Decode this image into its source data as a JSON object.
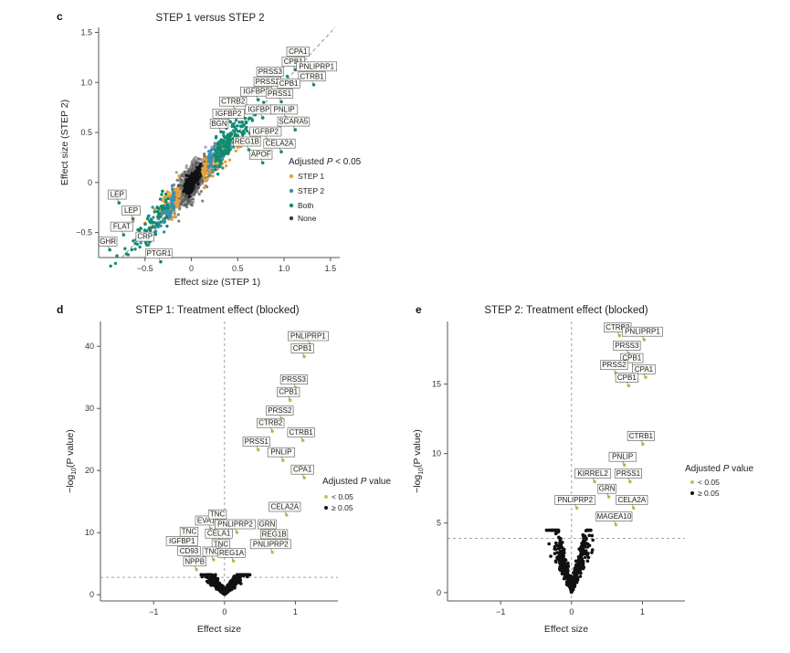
{
  "figure": {
    "colors": {
      "step1": "#e8a13a",
      "step2": "#3a8fb5",
      "both": "#0f8c6e",
      "none": "#3a3a3a",
      "sig": "#c8c44a",
      "nonsig": "#111111",
      "axis": "#555555",
      "dashed": "#888888"
    }
  },
  "chart_data": [
    {
      "panel": "c",
      "type": "scatter",
      "title": "STEP 1 versus STEP 2",
      "xlabel": "Effect size (STEP 1)",
      "ylabel": "Effect size (STEP 2)",
      "xlim": [
        -1.0,
        1.6
      ],
      "ylim": [
        -0.75,
        1.55
      ],
      "xticks": [
        -0.5,
        0,
        0.5,
        1.0,
        1.5
      ],
      "xticklabels": [
        "−0.5",
        "0",
        "0.5",
        "1.0",
        "1.5"
      ],
      "yticks": [
        -0.5,
        0,
        0.5,
        1.0,
        1.5
      ],
      "yticklabels": [
        "−0.5",
        "0",
        "0.5",
        "1.0",
        "1.5"
      ],
      "legend": {
        "title_prefix": "Adjusted ",
        "title_p": "P",
        "title_suffix": " < 0.05",
        "placement": "right",
        "items": [
          "STEP 1",
          "STEP 2",
          "Both",
          "None"
        ]
      },
      "diagonal": "y = x",
      "labels": [
        {
          "name": "CPA1",
          "x": 1.15,
          "y": 1.3
        },
        {
          "name": "CPB1",
          "x": 1.1,
          "y": 1.2
        },
        {
          "name": "PNLIPRP1",
          "x": 1.35,
          "y": 1.15
        },
        {
          "name": "PRSS3",
          "x": 0.85,
          "y": 1.1
        },
        {
          "name": "CTRB1",
          "x": 1.3,
          "y": 1.05
        },
        {
          "name": "PRSS2",
          "x": 0.82,
          "y": 1.0
        },
        {
          "name": "CPB1",
          "x": 1.05,
          "y": 0.98
        },
        {
          "name": "IGFBP3",
          "x": 0.7,
          "y": 0.9
        },
        {
          "name": "PRSS1",
          "x": 0.95,
          "y": 0.88
        },
        {
          "name": "CTRB2",
          "x": 0.45,
          "y": 0.8
        },
        {
          "name": "IGFBP2",
          "x": 0.75,
          "y": 0.72
        },
        {
          "name": "PNLIP",
          "x": 1.0,
          "y": 0.72
        },
        {
          "name": "IGFBP2",
          "x": 0.4,
          "y": 0.68
        },
        {
          "name": "SCARA5",
          "x": 1.1,
          "y": 0.6
        },
        {
          "name": "BGN",
          "x": 0.3,
          "y": 0.58
        },
        {
          "name": "IGFBP2",
          "x": 0.8,
          "y": 0.5
        },
        {
          "name": "REG1B",
          "x": 0.6,
          "y": 0.4
        },
        {
          "name": "CELA2A",
          "x": 0.95,
          "y": 0.38
        },
        {
          "name": "APOF",
          "x": 0.75,
          "y": 0.27
        },
        {
          "name": "LEP",
          "x": -0.8,
          "y": -0.13
        },
        {
          "name": "LEP",
          "x": -0.65,
          "y": -0.29
        },
        {
          "name": "FLAT",
          "x": -0.75,
          "y": -0.45
        },
        {
          "name": "CRP",
          "x": -0.5,
          "y": -0.55
        },
        {
          "name": "GHR",
          "x": -0.9,
          "y": -0.6
        },
        {
          "name": "PTGR1",
          "x": -0.35,
          "y": -0.72
        }
      ]
    },
    {
      "panel": "d",
      "type": "scatter",
      "title": "STEP 1: Treatment effect (blocked)",
      "xlabel": "Effect size",
      "ylabel": "−log",
      "ylabel_sub": "10",
      "ylabel_tail": "(P value)",
      "xlim": [
        -1.75,
        1.6
      ],
      "ylim": [
        -1,
        44
      ],
      "xticks": [
        -1,
        0,
        1
      ],
      "xticklabels": [
        "−1",
        "0",
        "1"
      ],
      "yticks": [
        0,
        10,
        20,
        30,
        40
      ],
      "yticklabels": [
        "0",
        "10",
        "20",
        "30",
        "40"
      ],
      "threshold": 2.8,
      "legend": {
        "title_prefix": "Adjusted ",
        "title_p": "P",
        "title_suffix": " value",
        "placement": "right",
        "items": [
          "< 0.05",
          "≥ 0.05"
        ]
      },
      "labels": [
        {
          "name": "PNLIPRP1",
          "x": 1.18,
          "y": 41.5
        },
        {
          "name": "CPB1",
          "x": 1.1,
          "y": 39.5
        },
        {
          "name": "PRSS3",
          "x": 0.98,
          "y": 34.5
        },
        {
          "name": "CPB1",
          "x": 0.9,
          "y": 32.5
        },
        {
          "name": "PRSS2",
          "x": 0.78,
          "y": 29.5
        },
        {
          "name": "CTRB2",
          "x": 0.65,
          "y": 27.5
        },
        {
          "name": "CTRB1",
          "x": 1.08,
          "y": 26.0
        },
        {
          "name": "PRSS1",
          "x": 0.45,
          "y": 24.5
        },
        {
          "name": "PNLIP",
          "x": 0.8,
          "y": 22.8
        },
        {
          "name": "CPA1",
          "x": 1.1,
          "y": 20.0
        },
        {
          "name": "CELA2A",
          "x": 0.85,
          "y": 14.0
        },
        {
          "name": "EVA1C",
          "x": -0.22,
          "y": 11.8
        },
        {
          "name": "TNC",
          "x": -0.1,
          "y": 12.8
        },
        {
          "name": "PNLIPRP2",
          "x": 0.15,
          "y": 11.2
        },
        {
          "name": "GRN",
          "x": 0.6,
          "y": 11.2
        },
        {
          "name": "TNC",
          "x": -0.5,
          "y": 10.0
        },
        {
          "name": "CELA1",
          "x": -0.08,
          "y": 9.7
        },
        {
          "name": "REG1B",
          "x": 0.7,
          "y": 9.6
        },
        {
          "name": "IGFBP1",
          "x": -0.6,
          "y": 8.5
        },
        {
          "name": "TNC",
          "x": -0.05,
          "y": 8.0
        },
        {
          "name": "PNLIPRP2",
          "x": 0.65,
          "y": 8.0
        },
        {
          "name": "CD93",
          "x": -0.5,
          "y": 6.9
        },
        {
          "name": "TNC",
          "x": -0.18,
          "y": 6.8
        },
        {
          "name": "REG1A",
          "x": 0.1,
          "y": 6.6
        },
        {
          "name": "NPPB",
          "x": -0.42,
          "y": 5.2
        }
      ]
    },
    {
      "panel": "e",
      "type": "scatter",
      "title": "STEP 2: Treatment effect (blocked)",
      "xlabel": "Effect size",
      "ylabel": "−log",
      "ylabel_sub": "10",
      "ylabel_tail": "(P value)",
      "xlim": [
        -1.75,
        1.6
      ],
      "ylim": [
        -0.6,
        19.5
      ],
      "xticks": [
        -1,
        0,
        1
      ],
      "xticklabels": [
        "−1",
        "0",
        "1"
      ],
      "yticks": [
        0,
        5,
        10,
        15
      ],
      "yticklabels": [
        "0",
        "5",
        "10",
        "15"
      ],
      "threshold": 3.9,
      "legend": {
        "title_prefix": "Adjusted ",
        "title_p": "P",
        "title_suffix": " value",
        "placement": "right",
        "items": [
          "< 0.05",
          "≥ 0.05"
        ]
      },
      "labels": [
        {
          "name": "CTRB2",
          "x": 0.65,
          "y": 19.0
        },
        {
          "name": "PNLIPRP1",
          "x": 1.0,
          "y": 18.7
        },
        {
          "name": "PRSS3",
          "x": 0.78,
          "y": 17.7
        },
        {
          "name": "CPB1",
          "x": 0.85,
          "y": 16.8
        },
        {
          "name": "PRSS2",
          "x": 0.6,
          "y": 16.3
        },
        {
          "name": "CPA1",
          "x": 1.02,
          "y": 16.0
        },
        {
          "name": "CPB1",
          "x": 0.78,
          "y": 15.4
        },
        {
          "name": "CTRB1",
          "x": 0.98,
          "y": 11.2
        },
        {
          "name": "PNLIP",
          "x": 0.72,
          "y": 9.7
        },
        {
          "name": "KIRREL2",
          "x": 0.3,
          "y": 8.5
        },
        {
          "name": "PRSS1",
          "x": 0.8,
          "y": 8.5
        },
        {
          "name": "GRN",
          "x": 0.5,
          "y": 7.4
        },
        {
          "name": "PNLIPRP2",
          "x": 0.05,
          "y": 6.6
        },
        {
          "name": "CELA2A",
          "x": 0.85,
          "y": 6.6
        },
        {
          "name": "MAGEA10",
          "x": 0.6,
          "y": 5.4
        }
      ]
    }
  ]
}
